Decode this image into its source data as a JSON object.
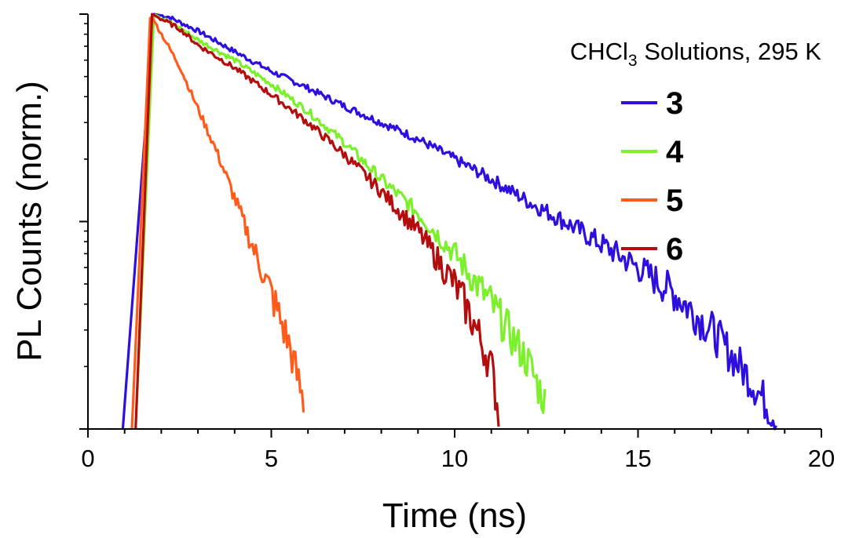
{
  "chart_data": {
    "type": "line",
    "title": "",
    "xlabel": "Time (ns)",
    "ylabel": "PL Counts (norm.)",
    "xlim": [
      0,
      20
    ],
    "x_ticks": [
      "0",
      "5",
      "10",
      "15",
      "20"
    ],
    "y_scale": "log",
    "ylim": [
      0.01,
      1
    ],
    "y_tick_labels_shown": false,
    "grid": false,
    "legend": {
      "title_main": "CHCl",
      "title_sub": "3",
      "title_rest": " Solutions, 295 K",
      "placement": "top-right"
    },
    "series": [
      {
        "name": "3",
        "color": "#2d10e0",
        "x": [
          0.95,
          1.8,
          2.2,
          3,
          4,
          5,
          6,
          7,
          8,
          9,
          10,
          11,
          12,
          13,
          14,
          15,
          16,
          17,
          18,
          18.8
        ],
        "y": [
          0.01,
          1.0,
          0.97,
          0.83,
          0.66,
          0.53,
          0.44,
          0.36,
          0.3,
          0.25,
          0.2,
          0.16,
          0.125,
          0.1,
          0.078,
          0.06,
          0.045,
          0.03,
          0.018,
          0.011
        ]
      },
      {
        "name": "4",
        "color": "#7cf02a",
        "x": [
          1.3,
          1.8,
          2.5,
          3,
          4,
          5,
          6,
          7,
          8,
          9,
          10,
          11,
          12,
          12.5
        ],
        "y": [
          0.01,
          1.0,
          0.86,
          0.75,
          0.6,
          0.46,
          0.34,
          0.24,
          0.16,
          0.11,
          0.07,
          0.04,
          0.021,
          0.013
        ]
      },
      {
        "name": "5",
        "color": "#ff5c1c",
        "x": [
          1.2,
          1.7,
          2.5,
          3.0,
          3.5,
          4.0,
          4.5,
          5.0,
          5.5,
          5.9
        ],
        "y": [
          0.01,
          1.0,
          0.56,
          0.35,
          0.22,
          0.13,
          0.075,
          0.045,
          0.025,
          0.013
        ]
      },
      {
        "name": "6",
        "color": "#b30d0d",
        "x": [
          1.3,
          1.75,
          2.5,
          3,
          4,
          5,
          6,
          7,
          8,
          9,
          10,
          10.5,
          11,
          11.2
        ],
        "y": [
          0.01,
          1.0,
          0.85,
          0.71,
          0.55,
          0.41,
          0.3,
          0.21,
          0.14,
          0.09,
          0.05,
          0.033,
          0.02,
          0.012
        ]
      }
    ]
  }
}
